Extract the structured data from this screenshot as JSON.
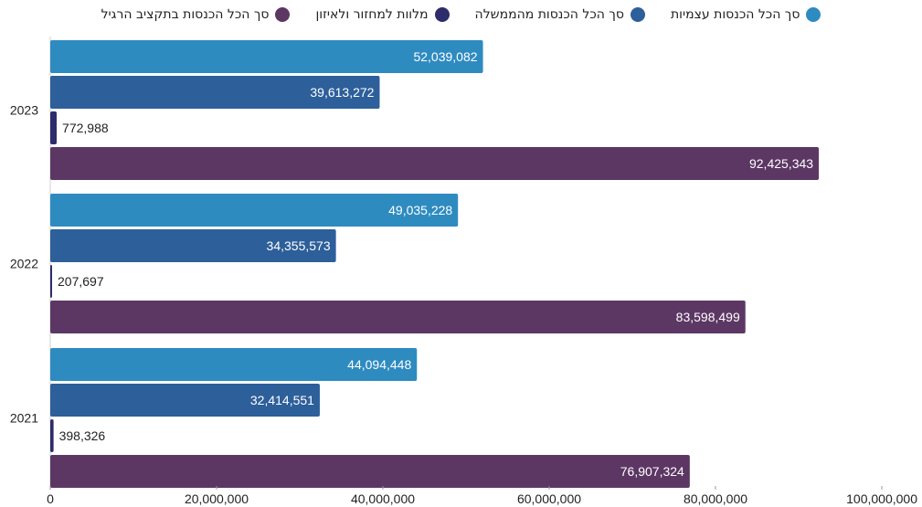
{
  "chart_data": {
    "type": "bar",
    "orientation": "horizontal",
    "categories": [
      "2023",
      "2022",
      "2021"
    ],
    "series": [
      {
        "name": "סך הכל הכנסות עצמיות",
        "color": "#2e8bc0",
        "values": [
          52039082,
          49035228,
          44094448
        ],
        "labels": [
          "52,039,082",
          "49,035,228",
          "44,094,448"
        ]
      },
      {
        "name": "סך הכל הכנסות מהממשלה",
        "color": "#2d5f9a",
        "values": [
          39613272,
          34355573,
          32414551
        ],
        "labels": [
          "39,613,272",
          "34,355,573",
          "32,414,551"
        ]
      },
      {
        "name": "מלוות למחזור ולאיזון",
        "color": "#2e2c6b",
        "values": [
          772988,
          207697,
          398326
        ],
        "labels": [
          "772,988",
          "207,697",
          "398,326"
        ]
      },
      {
        "name": "סך הכל הכנסות בתקציב הרגיל",
        "color": "#5c3764",
        "values": [
          92425343,
          83598499,
          76907324
        ],
        "labels": [
          "92,425,343",
          "83,598,499",
          "76,907,324"
        ]
      }
    ],
    "xlim": [
      0,
      100000000
    ],
    "x_ticks": [
      0,
      20000000,
      40000000,
      60000000,
      80000000,
      100000000
    ],
    "x_tick_labels": [
      "0",
      "20,000,000",
      "40,000,000",
      "60,000,000",
      "80,000,000",
      "100,000,000"
    ],
    "legend_position": "top",
    "grid": false
  }
}
